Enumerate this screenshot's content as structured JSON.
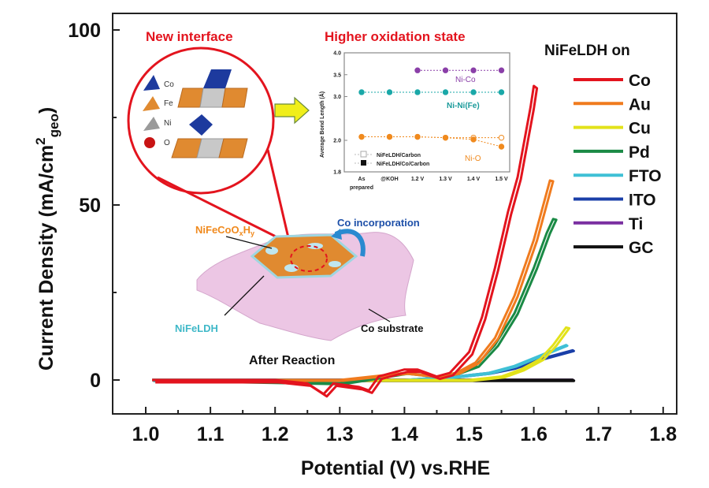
{
  "chart_data": {
    "type": "line",
    "title": "",
    "xlabel": "Potential (V) vs.RHE",
    "ylabel": "Current Density (mA/cm",
    "ylabel_sup": "2",
    "ylabel_sub": "geo",
    "ylabel_close": ")",
    "xlim": [
      0.95,
      1.82
    ],
    "ylim": [
      -10,
      105
    ],
    "x_ticks": [
      1.0,
      1.1,
      1.2,
      1.3,
      1.4,
      1.5,
      1.6,
      1.7,
      1.8
    ],
    "x_tick_labels": [
      "1.0",
      "1.1",
      "1.2",
      "1.3",
      "1.4",
      "1.5",
      "1.6",
      "1.7",
      "1.8"
    ],
    "y_ticks": [
      0,
      50,
      100
    ],
    "y_tick_labels": [
      "0",
      "50",
      "100"
    ],
    "grid": false,
    "legend": {
      "title": "NiFeLDH on",
      "placement": "right"
    },
    "series": [
      {
        "name": "Co",
        "color": "#e3141e",
        "x": [
          1.01,
          1.2,
          1.25,
          1.275,
          1.29,
          1.33,
          1.345,
          1.36,
          1.4,
          1.42,
          1.45,
          1.47,
          1.5,
          1.52,
          1.54,
          1.56,
          1.575,
          1.585,
          1.595,
          1.6
        ],
        "y": [
          0,
          0,
          -1,
          -4,
          -1,
          -2,
          -3,
          1,
          3,
          3,
          1,
          2,
          8,
          18,
          32,
          48,
          58,
          68,
          78,
          84
        ]
      },
      {
        "name": "Au",
        "color": "#f07b1e",
        "x": [
          1.01,
          1.3,
          1.4,
          1.45,
          1.48,
          1.51,
          1.54,
          1.57,
          1.6,
          1.625
        ],
        "y": [
          0,
          0,
          2,
          1,
          2,
          5,
          12,
          24,
          40,
          57
        ]
      },
      {
        "name": "Cu",
        "color": "#e2e21a",
        "x": [
          1.01,
          1.4,
          1.5,
          1.55,
          1.58,
          1.61,
          1.63,
          1.65
        ],
        "y": [
          0,
          0,
          0,
          1,
          3,
          6,
          10,
          15
        ]
      },
      {
        "name": "Pd",
        "color": "#1a8a45",
        "x": [
          1.01,
          1.3,
          1.4,
          1.45,
          1.48,
          1.51,
          1.54,
          1.57,
          1.6,
          1.62,
          1.63
        ],
        "y": [
          0,
          -1,
          2,
          1,
          2,
          4,
          10,
          19,
          32,
          42,
          46
        ]
      },
      {
        "name": "FTO",
        "color": "#3fc0d6",
        "x": [
          1.01,
          1.4,
          1.48,
          1.53,
          1.57,
          1.61,
          1.65
        ],
        "y": [
          0,
          0,
          1,
          2,
          4,
          7,
          10
        ]
      },
      {
        "name": "ITO",
        "color": "#1a3fa8",
        "x": [
          1.01,
          1.4,
          1.48,
          1.53,
          1.57,
          1.61,
          1.66
        ],
        "y": [
          0,
          0,
          1,
          2,
          3.5,
          6,
          8.5
        ]
      },
      {
        "name": "Ti",
        "color": "#7a2fa0",
        "x": [
          1.01,
          1.66
        ],
        "y": [
          0,
          0.1
        ]
      },
      {
        "name": "GC",
        "color": "#111111",
        "x": [
          1.01,
          1.66
        ],
        "y": [
          0,
          0
        ]
      }
    ],
    "annotations": {
      "new_interface": "New interface",
      "higher_oxidation": "Higher oxidation state",
      "nifecoo": "NiFeCoO",
      "nifecoo_sub_x": "x",
      "nifecoo_h": "H",
      "nifecoo_sub_y": "y",
      "co_incorporation": "Co incorporation",
      "nifeldh": "NiFeLDH",
      "co_substrate": "Co substrate",
      "after_reaction": "After Reaction",
      "crystal_legend": [
        "Co",
        "Fe",
        "Ni",
        "O"
      ]
    },
    "inset": {
      "type": "line",
      "ylabel": "Average Bond Length (Å)",
      "y_tick_labels": [
        "4.0",
        "3.5",
        "3.0",
        "2.0",
        "1.8"
      ],
      "categories": [
        "As prepared",
        "@KOH",
        "1.2 V",
        "1.3 V",
        "1.4 V",
        "1.5 V"
      ],
      "category_labels_line1": [
        "As",
        "@KOH",
        "1.2 V",
        "1.3 V",
        "1.4 V",
        "1.5 V"
      ],
      "category_labels_line2": [
        "prepared",
        "",
        "",
        "",
        "",
        ""
      ],
      "legend": [
        "NiFeLDH/Carbon",
        "NiFeLDH/Co/Carbon"
      ],
      "series": [
        {
          "name": "Ni-Co",
          "color": "#8a3fa8",
          "values": [
            null,
            null,
            3.6,
            3.6,
            3.6,
            3.6
          ]
        },
        {
          "name": "Ni-Ni(Fe)",
          "color": "#1aa8a8",
          "values": [
            3.1,
            3.1,
            3.1,
            3.1,
            3.1,
            3.1
          ]
        },
        {
          "name": "Ni-O (NiFeLDH/Carbon)",
          "color": "#f08a1e",
          "values": [
            2.08,
            2.08,
            2.08,
            2.06,
            2.06,
            2.06
          ]
        },
        {
          "name": "Ni-O (NiFeLDH/Co/Carbon)",
          "color": "#f08a1e",
          "values": [
            2.08,
            2.08,
            2.08,
            2.06,
            2.02,
            1.96
          ]
        }
      ],
      "labels": {
        "ni_co": "Ni-Co",
        "ni_ni": "Ni-Ni(Fe)",
        "ni_o": "Ni-O"
      }
    }
  }
}
